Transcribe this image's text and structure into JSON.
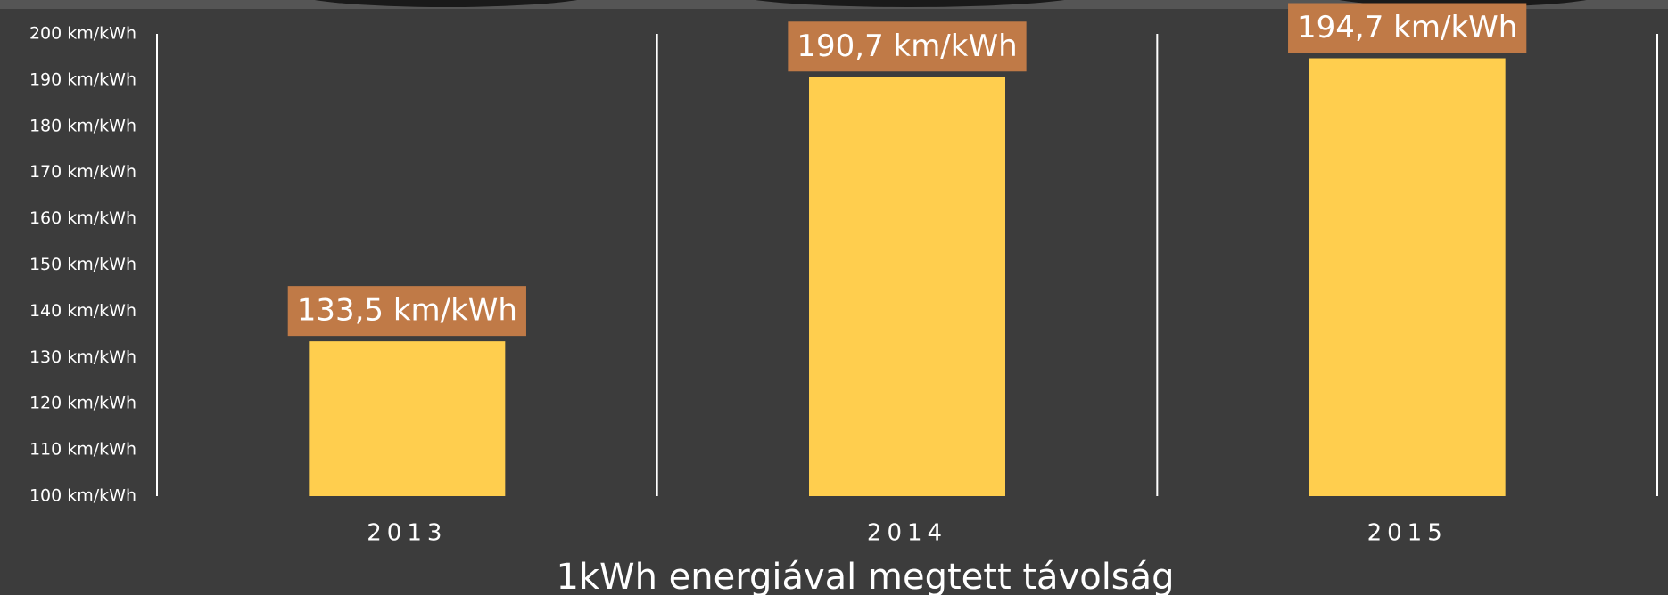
{
  "chart_data": {
    "type": "bar",
    "x_label": "1kWh energiával megtett távolság",
    "categories": [
      "2013",
      "2014",
      "2015"
    ],
    "values": [
      133.5,
      190.7,
      194.7
    ],
    "value_labels": [
      "133,5 km/kWh",
      "190,7 km/kWh",
      "194,7 km/kWh"
    ],
    "color": "#ffce4e",
    "label_color": "#c07a47",
    "ylim": [
      100,
      200
    ],
    "yticks": [
      {
        "value": 100,
        "label": "100 km/kWh"
      },
      {
        "value": 110,
        "label": "110 km/kWh"
      },
      {
        "value": 120,
        "label": "120 km/kWh"
      },
      {
        "value": 130,
        "label": "130 km/kWh"
      },
      {
        "value": 140,
        "label": "140 km/kWh"
      },
      {
        "value": 150,
        "label": "150 km/kWh"
      },
      {
        "value": 160,
        "label": "160 km/kWh"
      },
      {
        "value": 170,
        "label": "170 km/kWh"
      },
      {
        "value": 180,
        "label": "180 km/kWh"
      },
      {
        "value": 190,
        "label": "190 km/kWh"
      },
      {
        "value": 200,
        "label": "200 km/kWh"
      }
    ]
  }
}
